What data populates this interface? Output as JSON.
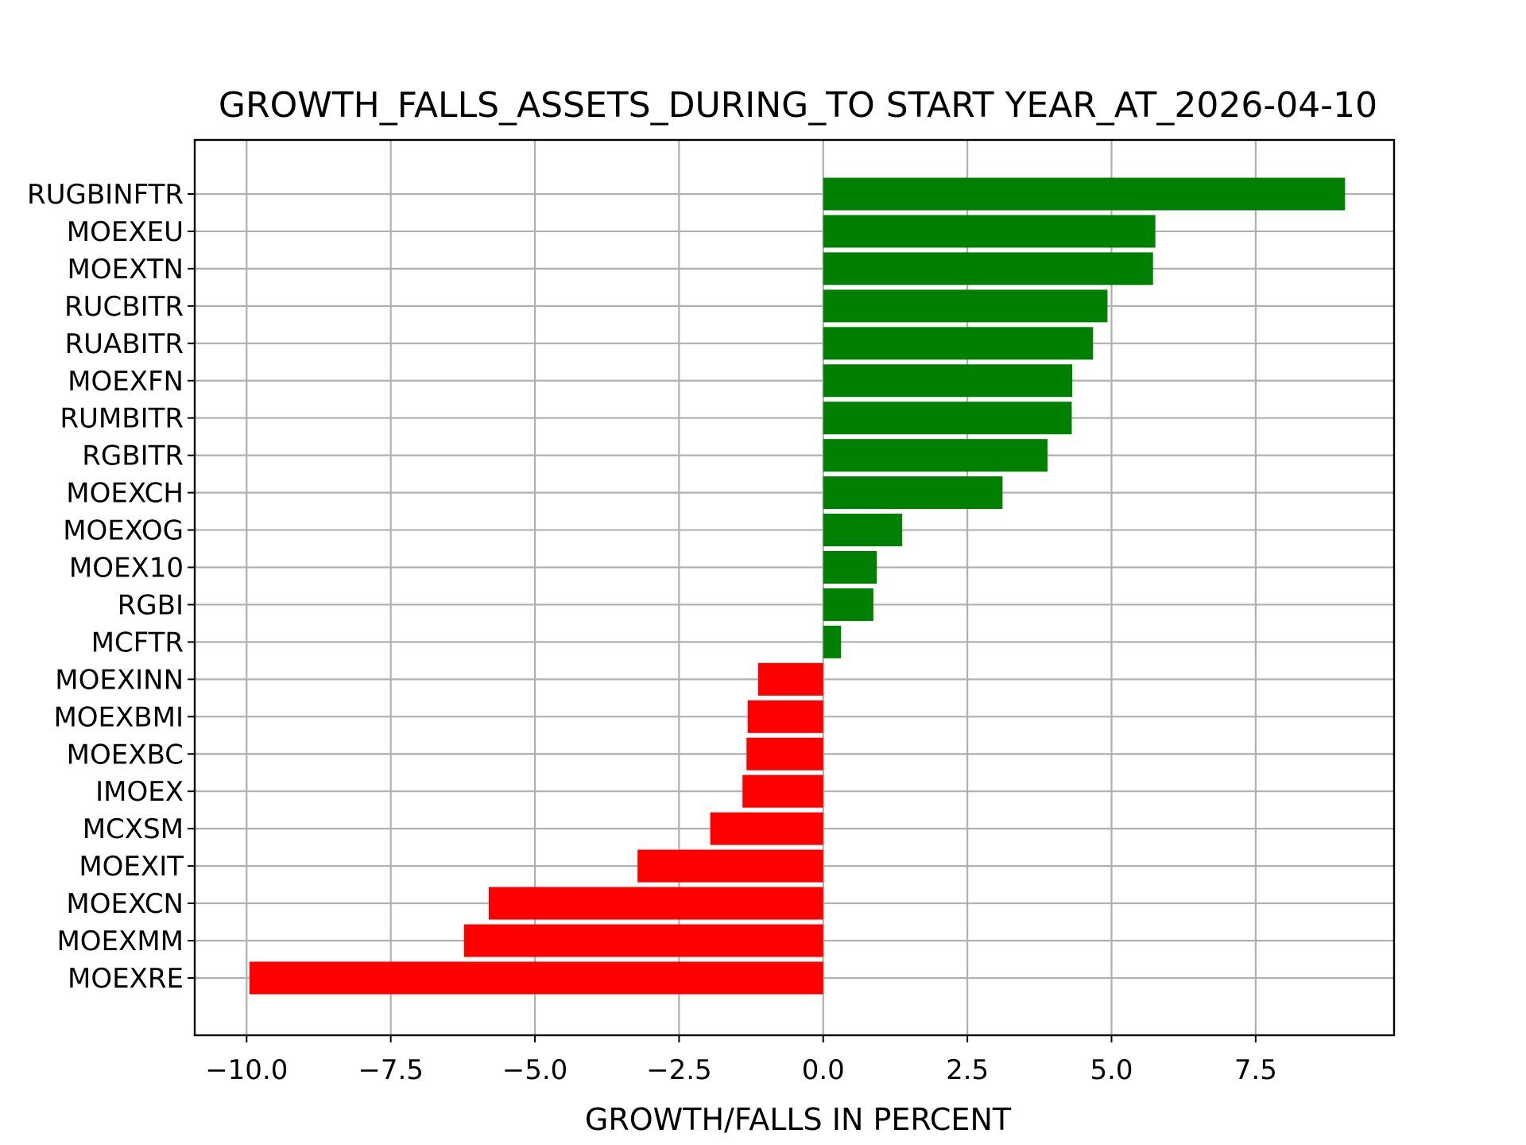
{
  "chart_data": {
    "type": "bar",
    "orientation": "horizontal",
    "title": "GROWTH_FALLS_ASSETS_DURING_TO START YEAR_AT_2026-04-10",
    "xlabel": "GROWTH/FALLS IN PERCENT",
    "ylabel": "",
    "xlim": [
      -10.9,
      9.9
    ],
    "x_ticks": [
      -10.0,
      -7.5,
      -5.0,
      -2.5,
      0.0,
      2.5,
      5.0,
      7.5
    ],
    "x_tick_labels": [
      "−10.0",
      "−7.5",
      "−5.0",
      "−2.5",
      "0.0",
      "2.5",
      "5.0",
      "7.5"
    ],
    "grid": true,
    "colors": {
      "positive": "#008000",
      "negative": "#ff0000"
    },
    "categories": [
      "RUGBINFTR",
      "MOEXEU",
      "MOEXTN",
      "RUCBITR",
      "RUABITR",
      "MOEXFN",
      "RUMBITR",
      "RGBITR",
      "MOEXCH",
      "MOEXOG",
      "MOEX10",
      "RGBI",
      "MCFTR",
      "MOEXINN",
      "MOEXBMI",
      "MOEXBC",
      "IMOEX",
      "MCXSM",
      "MOEXIT",
      "MOEXCN",
      "MOEXMM",
      "MOEXRE"
    ],
    "values": [
      9.05,
      5.76,
      5.72,
      4.93,
      4.68,
      4.32,
      4.31,
      3.89,
      3.11,
      1.37,
      0.93,
      0.87,
      0.31,
      -1.13,
      -1.31,
      -1.33,
      -1.4,
      -1.96,
      -3.22,
      -5.8,
      -6.23,
      -9.95
    ]
  }
}
